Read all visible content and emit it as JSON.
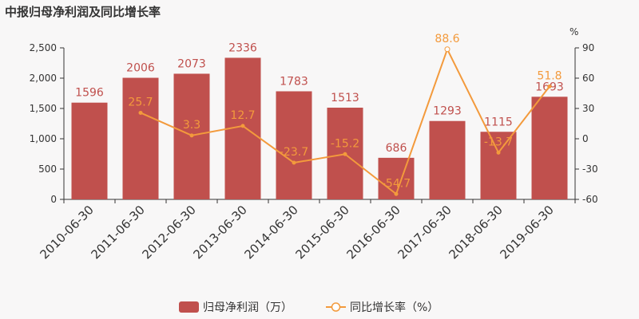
{
  "chart_data": {
    "type": "bar+line",
    "title": "中报归母净利润及同比增长率",
    "categories": [
      "2010-06-30",
      "2011-06-30",
      "2012-06-30",
      "2013-06-30",
      "2014-06-30",
      "2015-06-30",
      "2016-06-30",
      "2017-06-30",
      "2018-06-30",
      "2019-06-30"
    ],
    "series": [
      {
        "name": "归母净利润（万）",
        "type": "bar",
        "axis": "left",
        "color": "#c0504d",
        "values": [
          1596,
          2006,
          2073,
          2336,
          1783,
          1513,
          686,
          1293,
          1115,
          1693
        ],
        "labels": [
          "1596",
          "2006",
          "2073",
          "2336",
          "1783",
          "1513",
          "686",
          "1293",
          "1115",
          "1693"
        ]
      },
      {
        "name": "同比增长率（%）",
        "type": "line",
        "axis": "right",
        "color": "#f39a3c",
        "values": [
          null,
          25.7,
          3.3,
          12.7,
          -23.7,
          -15.2,
          -54.7,
          88.6,
          -13.7,
          51.8
        ],
        "labels": [
          "",
          "25.7",
          "3.3",
          "12.7",
          "-23.7",
          "-15.2",
          "-54.7",
          "88.6",
          "-13.7",
          "51.8"
        ]
      }
    ],
    "left_axis": {
      "min": 0,
      "max": 2500,
      "ticks": [
        0,
        500,
        1000,
        1500,
        2000,
        2500
      ],
      "tick_labels": [
        "0",
        "500",
        "1,000",
        "1,500",
        "2,000",
        "2,500"
      ]
    },
    "right_axis": {
      "min": -60,
      "max": 90,
      "ticks": [
        -60,
        -30,
        0,
        30,
        60,
        90
      ],
      "tick_labels": [
        "-60",
        "-30",
        "0",
        "30",
        "60",
        "90"
      ],
      "unit": "%"
    },
    "legend": {
      "position": "bottom"
    }
  }
}
